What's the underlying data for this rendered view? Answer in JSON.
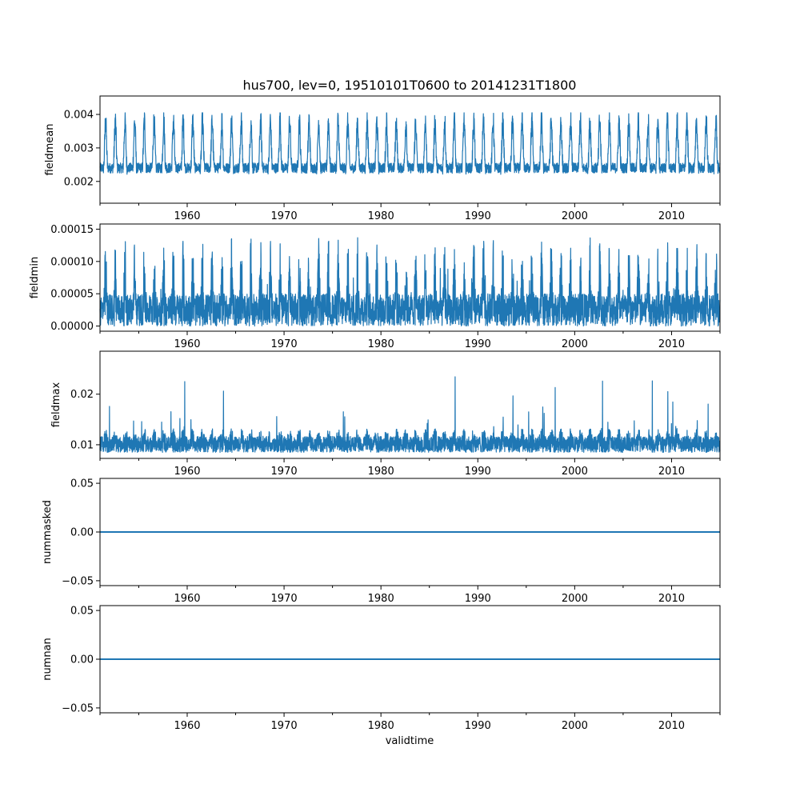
{
  "chart_data": {
    "type": "line",
    "title": "hus700, lev=0, 19510101T0600 to 20141231T1800",
    "xlabel": "validtime",
    "xlim": [
      1951.0,
      2015.0
    ],
    "x_ticks": [
      1960,
      1970,
      1980,
      1990,
      2000,
      2010
    ],
    "x_tick_labels": [
      "1960",
      "1970",
      "1980",
      "1990",
      "2000",
      "2010"
    ],
    "x_minor_ticks": [
      1955,
      1965,
      1975,
      1985,
      1995,
      2005
    ],
    "line_color": "#1f77b4",
    "panels": [
      {
        "name": "fieldmean",
        "ylabel": "fieldmean",
        "ylim": [
          0.00135,
          0.00455
        ],
        "y_ticks": [
          0.002,
          0.003,
          0.004
        ],
        "y_tick_labels": [
          "0.002",
          "0.003",
          "0.004"
        ],
        "kind": "seasonal",
        "baseline": 0.00195,
        "amplitude": 0.0014,
        "noise": 0.00025,
        "min_clip": 0.0015,
        "max_clip": 0.00405
      },
      {
        "name": "fieldmin",
        "ylabel": "fieldmin",
        "ylim": [
          -8e-06,
          0.000158
        ],
        "y_ticks": [
          0.0,
          5e-05,
          0.0001,
          0.00015
        ],
        "y_tick_labels": [
          "0.00000",
          "0.00005",
          "0.00010",
          "0.00015"
        ],
        "kind": "spiky_seasonal",
        "baseline": 0.0,
        "amplitude": 9e-05,
        "noise": 5e-05,
        "min_clip": 0.0,
        "max_clip": 0.000155
      },
      {
        "name": "fieldmax",
        "ylabel": "fieldmax",
        "ylim": [
          0.0073,
          0.0285
        ],
        "y_ticks": [
          0.01,
          0.02
        ],
        "y_tick_labels": [
          "0.01",
          "0.02"
        ],
        "kind": "noisy",
        "baseline": 0.0085,
        "amplitude": 0.0045,
        "noise": 0.0035,
        "min_clip": 0.0083,
        "max_clip": 0.0278
      },
      {
        "name": "nummasked",
        "ylabel": "nummasked",
        "ylim": [
          -0.055,
          0.055
        ],
        "y_ticks": [
          -0.05,
          0.0,
          0.05
        ],
        "y_tick_labels": [
          "−0.05",
          "0.00",
          "0.05"
        ],
        "kind": "constant",
        "value": 0.0
      },
      {
        "name": "numnan",
        "ylabel": "numnan",
        "ylim": [
          -0.055,
          0.055
        ],
        "y_ticks": [
          -0.05,
          0.0,
          0.05
        ],
        "y_tick_labels": [
          "−0.05",
          "0.00",
          "0.05"
        ],
        "kind": "constant",
        "value": 0.0
      }
    ]
  }
}
